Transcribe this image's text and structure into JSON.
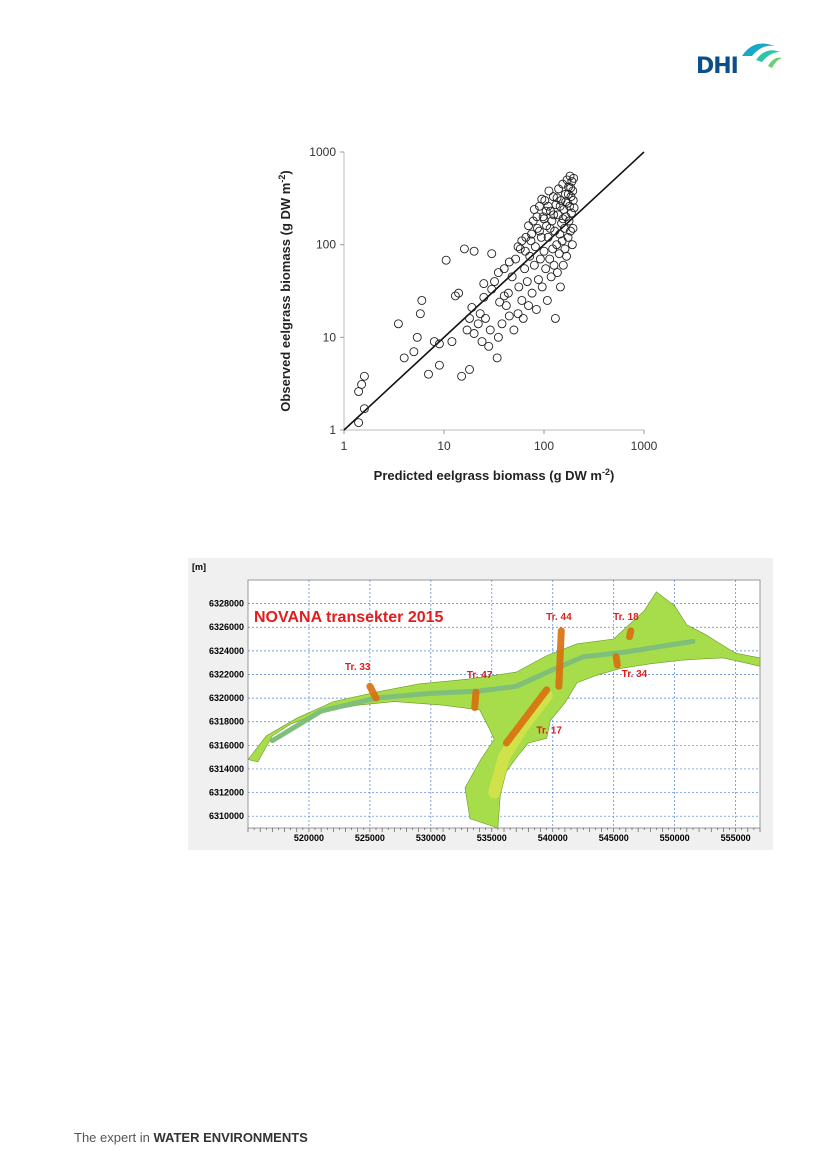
{
  "logo": {
    "text": "DHI"
  },
  "footer": {
    "prefix": "The expert in",
    "emphasis": "WATER ENVIRONMENTS"
  },
  "chart_data": [
    {
      "type": "scatter",
      "xlabel": "Predicted eelgrass biomass (g DW m",
      "xlabel_sup": "-2",
      "xlabel_end": ")",
      "ylabel": "Observed eelgrass biomass (g DW m",
      "ylabel_sup": "-2",
      "ylabel_end": ")",
      "xscale": "log",
      "yscale": "log",
      "xlim": [
        1,
        1000
      ],
      "ylim": [
        1,
        1000
      ],
      "xticks": [
        "1",
        "10",
        "100",
        "1000"
      ],
      "yticks": [
        "1",
        "10",
        "100",
        "1000"
      ],
      "reference_line": "1:1",
      "points": [
        [
          1.4,
          1.2
        ],
        [
          1.4,
          2.6
        ],
        [
          1.5,
          3.1
        ],
        [
          1.6,
          3.8
        ],
        [
          1.6,
          1.7
        ],
        [
          3.5,
          14
        ],
        [
          4.0,
          6
        ],
        [
          5.0,
          7
        ],
        [
          5.4,
          10
        ],
        [
          6.0,
          25
        ],
        [
          5.8,
          18
        ],
        [
          7.0,
          4
        ],
        [
          8.0,
          9
        ],
        [
          9.0,
          5
        ],
        [
          9.0,
          8.5
        ],
        [
          10.5,
          68
        ],
        [
          12,
          9
        ],
        [
          13,
          28
        ],
        [
          14,
          30
        ],
        [
          15,
          3.8
        ],
        [
          16,
          90
        ],
        [
          17,
          12
        ],
        [
          18,
          16
        ],
        [
          18,
          4.5
        ],
        [
          19,
          21
        ],
        [
          20,
          85
        ],
        [
          20,
          11
        ],
        [
          22,
          14
        ],
        [
          23,
          18
        ],
        [
          24,
          9
        ],
        [
          25,
          27
        ],
        [
          26,
          16
        ],
        [
          28,
          8
        ],
        [
          29,
          12
        ],
        [
          30,
          33
        ],
        [
          30,
          80
        ],
        [
          32,
          40
        ],
        [
          34,
          6
        ],
        [
          35,
          10
        ],
        [
          36,
          24
        ],
        [
          38,
          14
        ],
        [
          40,
          55
        ],
        [
          42,
          22
        ],
        [
          44,
          30
        ],
        [
          45,
          17
        ],
        [
          48,
          45
        ],
        [
          50,
          12
        ],
        [
          52,
          70
        ],
        [
          55,
          18
        ],
        [
          56,
          35
        ],
        [
          58,
          90
        ],
        [
          60,
          25
        ],
        [
          62,
          16
        ],
        [
          64,
          55
        ],
        [
          66,
          120
        ],
        [
          68,
          40
        ],
        [
          70,
          22
        ],
        [
          72,
          75
        ],
        [
          74,
          110
        ],
        [
          76,
          30
        ],
        [
          78,
          180
        ],
        [
          80,
          60
        ],
        [
          82,
          95
        ],
        [
          84,
          20
        ],
        [
          86,
          150
        ],
        [
          88,
          42
        ],
        [
          90,
          260
        ],
        [
          92,
          70
        ],
        [
          94,
          120
        ],
        [
          96,
          35
        ],
        [
          98,
          200
        ],
        [
          100,
          85
        ],
        [
          102,
          300
        ],
        [
          104,
          55
        ],
        [
          106,
          160
        ],
        [
          108,
          25
        ],
        [
          110,
          120
        ],
        [
          112,
          380
        ],
        [
          114,
          70
        ],
        [
          116,
          230
        ],
        [
          118,
          45
        ],
        [
          120,
          180
        ],
        [
          122,
          90
        ],
        [
          124,
          330
        ],
        [
          126,
          60
        ],
        [
          128,
          140
        ],
        [
          130,
          16
        ],
        [
          132,
          270
        ],
        [
          134,
          100
        ],
        [
          136,
          50
        ],
        [
          138,
          210
        ],
        [
          140,
          400
        ],
        [
          142,
          80
        ],
        [
          144,
          130
        ],
        [
          146,
          35
        ],
        [
          148,
          300
        ],
        [
          150,
          170
        ],
        [
          152,
          110
        ],
        [
          154,
          450
        ],
        [
          156,
          60
        ],
        [
          158,
          240
        ],
        [
          160,
          150
        ],
        [
          162,
          90
        ],
        [
          164,
          350
        ],
        [
          166,
          200
        ],
        [
          168,
          75
        ],
        [
          170,
          500
        ],
        [
          172,
          280
        ],
        [
          174,
          120
        ],
        [
          176,
          420
        ],
        [
          178,
          180
        ],
        [
          180,
          260
        ],
        [
          182,
          550
        ],
        [
          184,
          140
        ],
        [
          186,
          330
        ],
        [
          188,
          220
        ],
        [
          190,
          480
        ],
        [
          192,
          100
        ],
        [
          194,
          380
        ],
        [
          196,
          300
        ],
        [
          198,
          520
        ],
        [
          200,
          250
        ],
        [
          60,
          110
        ],
        [
          70,
          160
        ],
        [
          80,
          240
        ],
        [
          90,
          140
        ],
        [
          100,
          190
        ],
        [
          110,
          260
        ],
        [
          65,
          85
        ],
        [
          75,
          130
        ],
        [
          85,
          200
        ],
        [
          95,
          310
        ],
        [
          105,
          230
        ],
        [
          115,
          150
        ],
        [
          125,
          210
        ],
        [
          135,
          320
        ],
        [
          145,
          260
        ],
        [
          155,
          190
        ],
        [
          165,
          290
        ],
        [
          175,
          350
        ],
        [
          185,
          410
        ],
        [
          195,
          150
        ],
        [
          45,
          65
        ],
        [
          55,
          95
        ],
        [
          35,
          50
        ],
        [
          25,
          38
        ],
        [
          40,
          28
        ]
      ]
    },
    {
      "type": "map",
      "unit_label": "[m]",
      "title": "NOVANA transekter 2015",
      "xlim": [
        515000,
        557000
      ],
      "ylim": [
        6309000,
        6330000
      ],
      "xticks": [
        "520000",
        "525000",
        "530000",
        "535000",
        "540000",
        "545000",
        "550000",
        "555000"
      ],
      "yticks": [
        "6328000",
        "6326000",
        "6324000",
        "6322000",
        "6320000",
        "6318000",
        "6316000",
        "6314000",
        "6312000",
        "6310000"
      ],
      "transects": [
        {
          "name": "Tr. 33",
          "x1": 525000,
          "y1": 6321000,
          "x2": 525500,
          "y2": 6320000
        },
        {
          "name": "Tr. 47",
          "x1": 533700,
          "y1": 6320500,
          "x2": 533600,
          "y2": 6319200
        },
        {
          "name": "Tr. 44",
          "x1": 540700,
          "y1": 6325700,
          "x2": 540500,
          "y2": 6321000
        },
        {
          "name": "Tr. 17",
          "x1": 539500,
          "y1": 6320700,
          "x2": 536200,
          "y2": 6316200
        },
        {
          "name": "Tr. 18",
          "x1": 546400,
          "y1": 6325700,
          "x2": 546300,
          "y2": 6325200
        },
        {
          "name": "Tr. 34",
          "x1": 545200,
          "y1": 6323500,
          "x2": 545300,
          "y2": 6322800
        }
      ]
    }
  ]
}
